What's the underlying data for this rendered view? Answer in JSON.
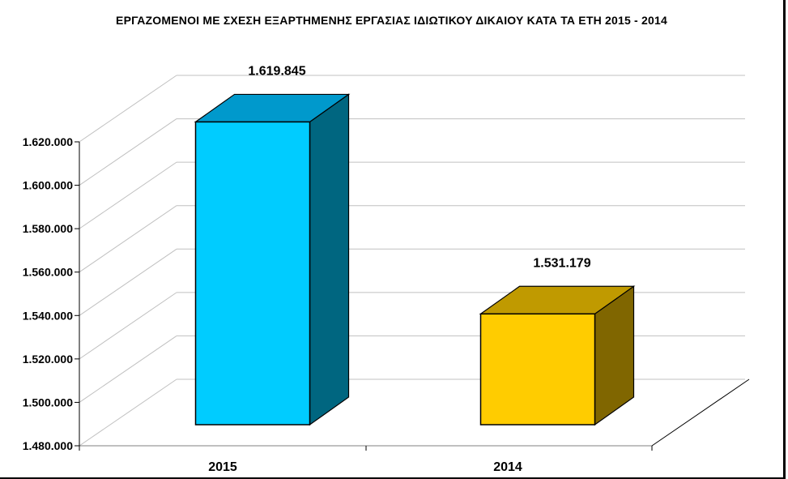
{
  "chart_data": {
    "type": "bar",
    "title": "ΕΡΓΑΖΟΜΕΝΟΙ ΜΕ ΣΧΕΣΗ ΕΞΑΡΤΗΜΕΝΗΣ ΕΡΓΑΣΙΑΣ ΙΔΙΩΤΙΚΟΥ ΔΙΚΑΙΟΥ ΚΑΤΑ ΤΑ ΕΤΗ 2015 - 2014",
    "categories": [
      "2015",
      "2014"
    ],
    "values": [
      1619845,
      1531179
    ],
    "data_labels": [
      "1.619.845",
      "1.531.179"
    ],
    "ylim": [
      1480000,
      1620000
    ],
    "yticks": [
      1480000,
      1500000,
      1520000,
      1540000,
      1560000,
      1580000,
      1600000,
      1620000
    ],
    "ytick_labels": [
      "1.480.000",
      "1.500.000",
      "1.520.000",
      "1.540.000",
      "1.560.000",
      "1.580.000",
      "1.600.000",
      "1.620.000"
    ],
    "xlabel": "",
    "ylabel": "",
    "grid": true,
    "style": "3d",
    "colors": {
      "2015": {
        "front": "#00CCFF",
        "top": "#0099CC",
        "side": "#006680"
      },
      "2014": {
        "front": "#FFCC00",
        "top": "#C09A00",
        "side": "#806600"
      }
    }
  }
}
